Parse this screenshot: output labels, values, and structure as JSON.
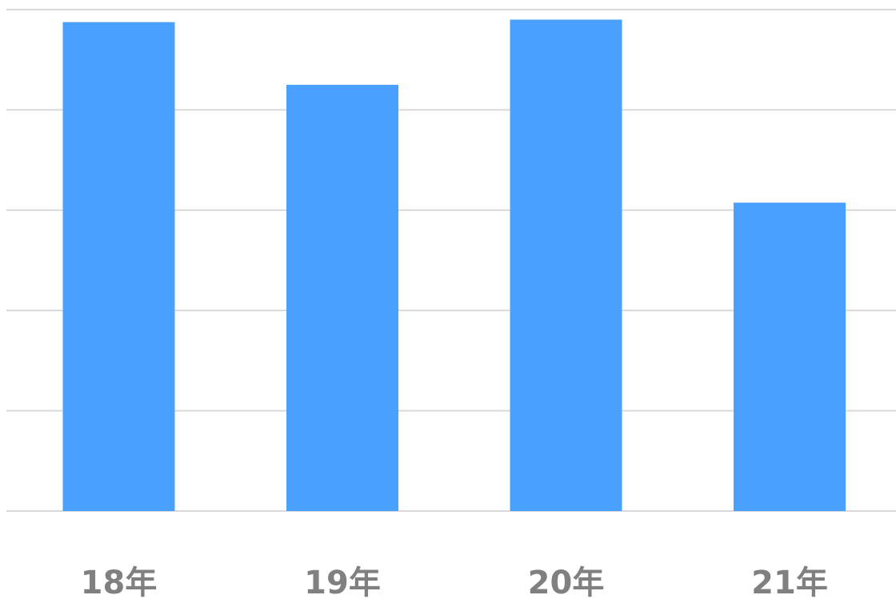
{
  "chart_data": {
    "type": "bar",
    "categories": [
      "18年",
      "19年",
      "20年",
      "21年"
    ],
    "values": [
      97.5,
      85,
      98,
      61.5
    ],
    "ylim": [
      0,
      100
    ],
    "y_gridlines": [
      0,
      20,
      40,
      60,
      80,
      100
    ],
    "grid": true,
    "legend": "none",
    "colors": {
      "bar": "#4aa0ff",
      "grid": "#d9d9d9",
      "label": "#808080"
    }
  }
}
